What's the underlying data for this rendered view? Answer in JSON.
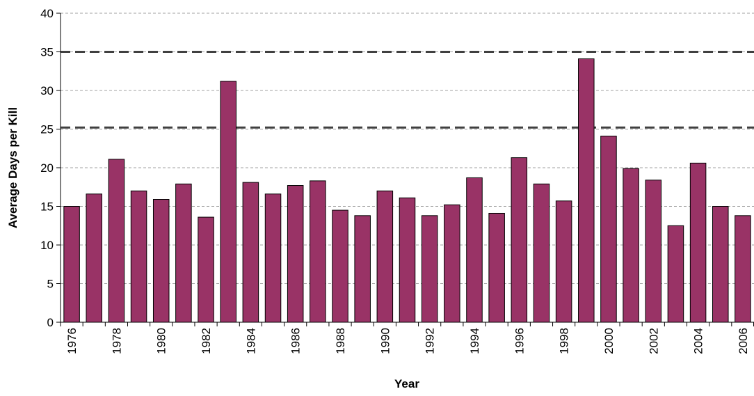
{
  "chart_data": {
    "type": "bar",
    "xlabel": "Year",
    "ylabel": "Average Days per Kill",
    "ylim": [
      0,
      40
    ],
    "yticks": [
      0,
      5,
      10,
      15,
      20,
      25,
      30,
      35,
      40
    ],
    "grid": true,
    "categories": [
      "1976",
      "1977",
      "1978",
      "1979",
      "1980",
      "1981",
      "1982",
      "1983",
      "1984",
      "1985",
      "1986",
      "1987",
      "1988",
      "1989",
      "1990",
      "1991",
      "1992",
      "1993",
      "1994",
      "1995",
      "1996",
      "1997",
      "1998",
      "1999",
      "2000",
      "2001",
      "2002",
      "2003",
      "2004",
      "2005",
      "2006"
    ],
    "x_tick_labels": [
      "1976",
      "",
      "1978",
      "",
      "1980",
      "",
      "1982",
      "",
      "1984",
      "",
      "1986",
      "",
      "1988",
      "",
      "1990",
      "",
      "1992",
      "",
      "1994",
      "",
      "1996",
      "",
      "1998",
      "",
      "2000",
      "",
      "2002",
      "",
      "2004",
      "",
      "2006"
    ],
    "values": [
      15.0,
      16.6,
      21.1,
      17.0,
      15.9,
      17.9,
      13.6,
      31.2,
      18.1,
      16.6,
      17.7,
      18.3,
      14.5,
      13.8,
      17.0,
      16.1,
      13.8,
      15.2,
      18.7,
      14.1,
      21.3,
      17.9,
      15.7,
      34.1,
      24.1,
      19.9,
      18.4,
      12.5,
      20.6,
      15.0,
      13.8
    ],
    "reference_lines": [
      25.2,
      35.0
    ],
    "colors": {
      "bar_fill": "#993366",
      "bar_stroke": "#000000",
      "grid": "#a0a0a0",
      "reference_line": "#404040"
    }
  }
}
